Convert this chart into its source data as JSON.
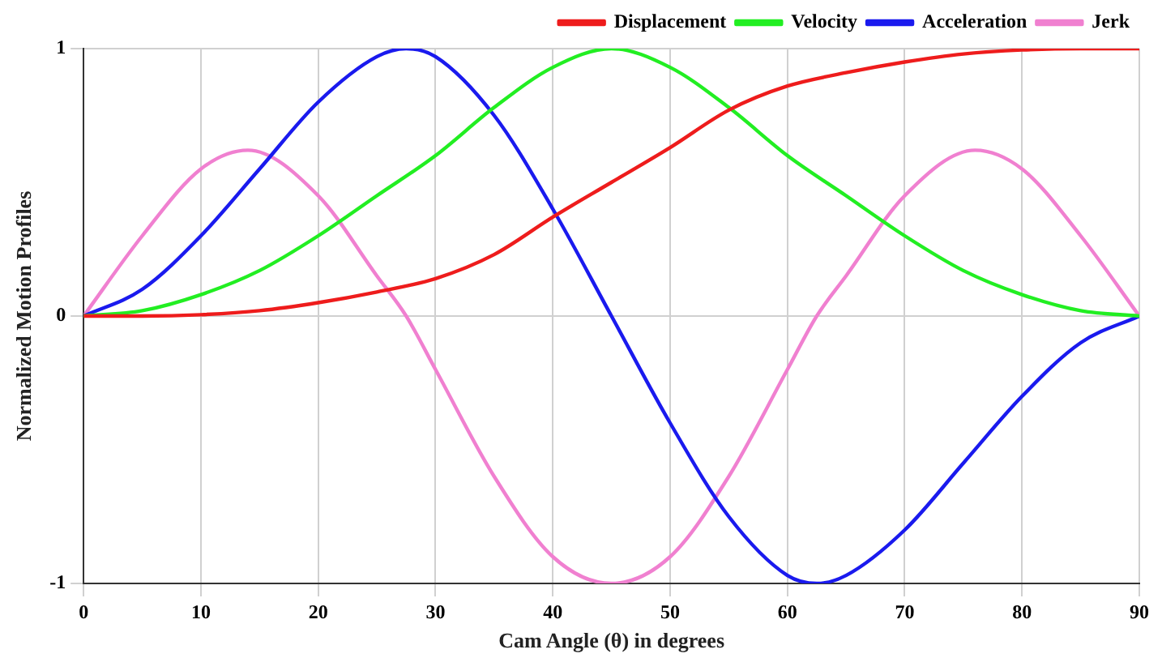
{
  "chart_data": {
    "type": "line",
    "xlabel": "Cam Angle (θ) in degrees",
    "ylabel": "Normalized Motion Profiles",
    "xlim": [
      0,
      90
    ],
    "xticks": [
      0,
      10,
      20,
      30,
      40,
      50,
      60,
      70,
      80,
      90
    ],
    "ylim": [
      -1,
      1
    ],
    "yticks": [
      -1,
      0,
      1
    ],
    "grid": true,
    "legend": "top right",
    "marker": "none",
    "line_style": "solid",
    "series": [
      {
        "name": "Displacement",
        "color": "#ee1c1c",
        "x": [
          0,
          5,
          10,
          15,
          20,
          25,
          30,
          35,
          40,
          45,
          50,
          55,
          60,
          65,
          70,
          75,
          80,
          85,
          90
        ],
        "values": [
          0,
          0,
          0.005,
          0.02,
          0.05,
          0.09,
          0.14,
          0.23,
          0.37,
          0.5,
          0.63,
          0.77,
          0.86,
          0.91,
          0.95,
          0.98,
          0.995,
          1,
          1
        ]
      },
      {
        "name": "Velocity",
        "color": "#22ee22",
        "x": [
          0,
          5,
          10,
          15,
          20,
          25,
          30,
          35,
          40,
          45,
          50,
          55,
          60,
          65,
          70,
          75,
          80,
          85,
          90
        ],
        "values": [
          0,
          0.02,
          0.08,
          0.17,
          0.3,
          0.45,
          0.6,
          0.78,
          0.93,
          1,
          0.93,
          0.78,
          0.6,
          0.45,
          0.3,
          0.17,
          0.08,
          0.02,
          0
        ]
      },
      {
        "name": "Acceleration",
        "color": "#1a1aee",
        "x": [
          0,
          5,
          10,
          15,
          20,
          25,
          27.5,
          30,
          35,
          40,
          45,
          50,
          55,
          60,
          62.5,
          65,
          70,
          75,
          80,
          85,
          90
        ],
        "values": [
          0,
          0.1,
          0.3,
          0.55,
          0.8,
          0.97,
          1,
          0.97,
          0.75,
          0.4,
          0,
          -0.4,
          -0.75,
          -0.97,
          -1,
          -0.97,
          -0.8,
          -0.55,
          -0.3,
          -0.1,
          0
        ]
      },
      {
        "name": "Jerk",
        "color": "#f080d0",
        "x": [
          0,
          5,
          10,
          14,
          20,
          25,
          27.5,
          30,
          35,
          40,
          45,
          50,
          55,
          60,
          62.5,
          65,
          70,
          76,
          80,
          85,
          90
        ],
        "values": [
          0,
          0.3,
          0.55,
          0.62,
          0.45,
          0.15,
          0,
          -0.2,
          -0.6,
          -0.9,
          -1,
          -0.9,
          -0.6,
          -0.2,
          0,
          0.15,
          0.45,
          0.62,
          0.55,
          0.3,
          0
        ]
      }
    ]
  }
}
